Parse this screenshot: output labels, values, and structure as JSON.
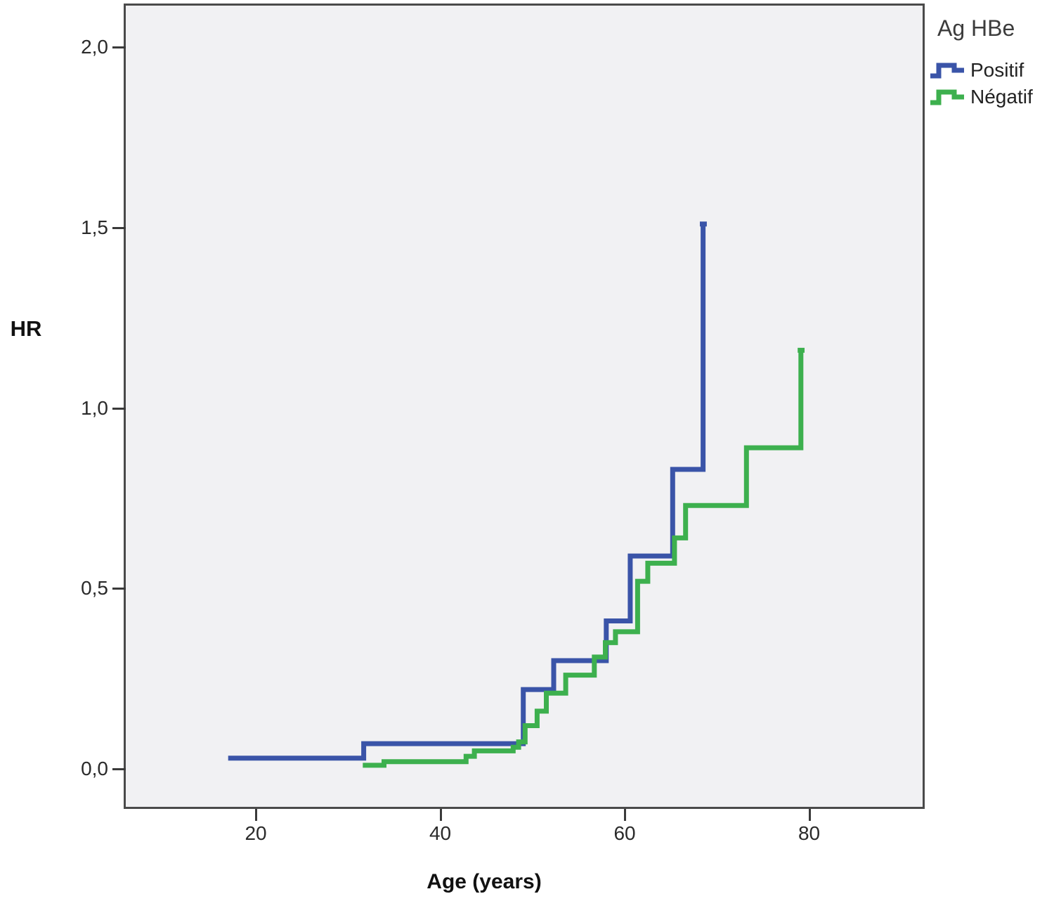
{
  "y_axis": {
    "title": "HR",
    "tick_labels": [
      "2,0",
      "1,5",
      "1,0",
      "0,5",
      "0,0"
    ],
    "tick_values": [
      2.0,
      1.5,
      1.0,
      0.5,
      0.0
    ]
  },
  "x_axis": {
    "title": "Age (years)",
    "tick_labels": [
      "20",
      "40",
      "60",
      "80"
    ],
    "tick_values": [
      20,
      40,
      60,
      80
    ]
  },
  "legend": {
    "title": "Ag HBe",
    "items": [
      "Positif",
      "Négatif"
    ]
  },
  "colors": {
    "positif": "#3a54a8",
    "negatif": "#3db04e",
    "plot_background": "#f1f1f3",
    "frame": "#4a4a4a",
    "text": "#262626"
  },
  "chart_data": {
    "type": "line",
    "step": true,
    "title": "",
    "xlabel": "Age (years)",
    "ylabel": "HR",
    "legend_title": "Ag HBe",
    "legend_position": "top-right",
    "grid": false,
    "x_domain": [
      5.9,
      92.3
    ],
    "y_domain": [
      -0.105,
      2.115
    ],
    "xlim": [
      20,
      80
    ],
    "ylim": [
      0,
      2
    ],
    "series": [
      {
        "name": "Positif",
        "color": "#3a54a8",
        "points": [
          [
            17.0,
            0.03
          ],
          [
            31.7,
            0.03
          ],
          [
            31.7,
            0.07
          ],
          [
            49.0,
            0.07
          ],
          [
            49.0,
            0.22
          ],
          [
            52.3,
            0.22
          ],
          [
            52.3,
            0.3
          ],
          [
            58.0,
            0.3
          ],
          [
            58.0,
            0.41
          ],
          [
            60.6,
            0.41
          ],
          [
            60.6,
            0.59
          ],
          [
            65.2,
            0.59
          ],
          [
            65.2,
            0.83
          ],
          [
            68.5,
            0.83
          ],
          [
            68.5,
            1.51
          ],
          [
            68.15,
            1.51
          ],
          [
            68.9,
            1.51
          ]
        ]
      },
      {
        "name": "Négatif",
        "color": "#3db04e",
        "points": [
          [
            31.6,
            0.01
          ],
          [
            33.9,
            0.01
          ],
          [
            33.9,
            0.02
          ],
          [
            42.8,
            0.02
          ],
          [
            42.8,
            0.035
          ],
          [
            43.7,
            0.035
          ],
          [
            43.7,
            0.05
          ],
          [
            47.9,
            0.05
          ],
          [
            47.9,
            0.06
          ],
          [
            48.5,
            0.06
          ],
          [
            48.5,
            0.075
          ],
          [
            49.2,
            0.075
          ],
          [
            49.2,
            0.12
          ],
          [
            50.5,
            0.12
          ],
          [
            50.5,
            0.16
          ],
          [
            51.5,
            0.16
          ],
          [
            51.5,
            0.21
          ],
          [
            53.6,
            0.21
          ],
          [
            53.6,
            0.26
          ],
          [
            56.7,
            0.26
          ],
          [
            56.7,
            0.31
          ],
          [
            57.9,
            0.31
          ],
          [
            57.9,
            0.35
          ],
          [
            59.0,
            0.35
          ],
          [
            59.0,
            0.38
          ],
          [
            61.4,
            0.38
          ],
          [
            61.4,
            0.52
          ],
          [
            62.5,
            0.52
          ],
          [
            62.5,
            0.57
          ],
          [
            65.4,
            0.57
          ],
          [
            65.4,
            0.64
          ],
          [
            66.6,
            0.64
          ],
          [
            66.6,
            0.73
          ],
          [
            73.2,
            0.73
          ],
          [
            73.2,
            0.89
          ],
          [
            79.1,
            0.89
          ],
          [
            79.1,
            1.16
          ],
          [
            78.75,
            1.16
          ],
          [
            79.5,
            1.16
          ]
        ]
      }
    ]
  }
}
